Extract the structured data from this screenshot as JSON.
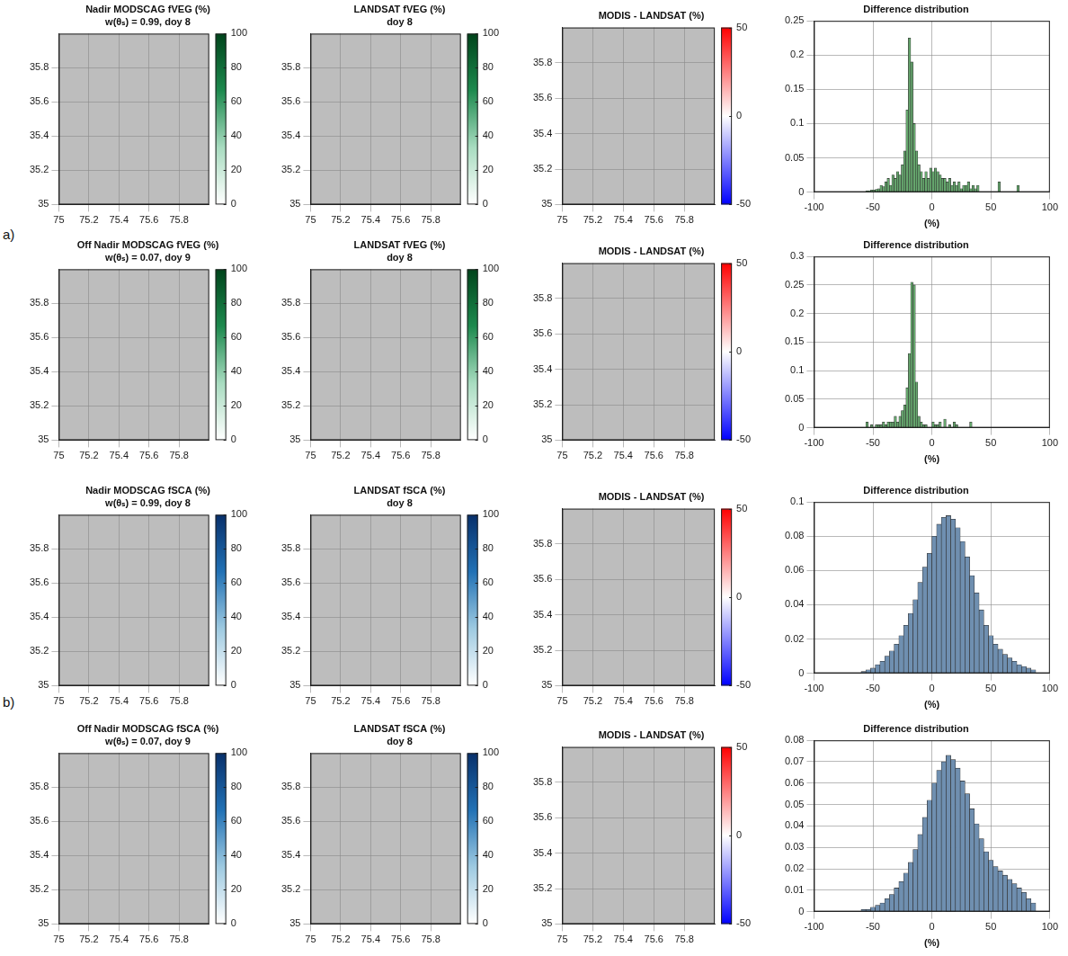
{
  "chart_data": [
    {
      "type": "map",
      "title": "Nadir MODSCAG fVEG (%)",
      "subtitle": "w(θₛ) = 0.99, doy 8",
      "xlim": [
        75,
        76
      ],
      "ylim": [
        35,
        36
      ],
      "xticks": [
        75,
        75.2,
        75.4,
        75.6,
        75.8
      ],
      "yticks": [
        35,
        35.2,
        35.4,
        35.6,
        35.8
      ],
      "grid": true,
      "colorbar": {
        "range": [
          0,
          100
        ],
        "ticks": [
          0,
          20,
          40,
          60,
          80,
          100
        ],
        "colors": [
          "#ffffff",
          "#a8dcc0",
          "#1d8a4e",
          "#00441b"
        ]
      }
    },
    {
      "type": "map",
      "title": "LANDSAT fVEG (%)",
      "subtitle": "doy 8",
      "xlim": [
        75,
        76
      ],
      "ylim": [
        35,
        36
      ],
      "xticks": [
        75,
        75.2,
        75.4,
        75.6,
        75.8
      ],
      "yticks": [
        35,
        35.2,
        35.4,
        35.6,
        35.8
      ],
      "grid": true,
      "colorbar": {
        "range": [
          0,
          100
        ],
        "ticks": [
          0,
          20,
          40,
          60,
          80,
          100
        ],
        "colors": [
          "#ffffff",
          "#a8dcc0",
          "#1d8a4e",
          "#00441b"
        ]
      }
    },
    {
      "type": "map",
      "title": "MODIS - LANDSAT (%)",
      "xlim": [
        75,
        76
      ],
      "ylim": [
        35,
        36
      ],
      "xticks": [
        75,
        75.2,
        75.4,
        75.6,
        75.8
      ],
      "yticks": [
        35,
        35.2,
        35.4,
        35.6,
        35.8
      ],
      "grid": true,
      "colorbar": {
        "range": [
          -50,
          50
        ],
        "ticks": [
          -50,
          0,
          50
        ],
        "colors": [
          "#0000ff",
          "#ffffff",
          "#ff0000"
        ]
      }
    },
    {
      "type": "histogram",
      "title": "Difference distribution",
      "xlabel": "(%)",
      "color": "#66a86e",
      "xlim": [
        -100,
        100
      ],
      "xticks": [
        -100,
        -50,
        0,
        50,
        100
      ],
      "ylim": [
        0,
        0.25
      ],
      "yticks": [
        0,
        0.05,
        0.1,
        0.15,
        0.2,
        0.25
      ],
      "grid": true,
      "bins": [
        -56,
        -54,
        -52,
        -50,
        -48,
        -46,
        -44,
        -42,
        -40,
        -38,
        -36,
        -34,
        -32,
        -30,
        -28,
        -26,
        -24,
        -22,
        -20,
        -18,
        -16,
        -14,
        -12,
        -10,
        -8,
        -6,
        -4,
        -2,
        0,
        2,
        4,
        6,
        8,
        10,
        12,
        14,
        16,
        18,
        20,
        22,
        24,
        26,
        28,
        30,
        32,
        34,
        36,
        38,
        40,
        42,
        44,
        46,
        48,
        50,
        52,
        54,
        56,
        58,
        60,
        62,
        64,
        66,
        68,
        70,
        72,
        74,
        76
      ],
      "values": [
        0.002,
        0.002,
        0.003,
        0.003,
        0.004,
        0.005,
        0.01,
        0.008,
        0.015,
        0.02,
        0.01,
        0.025,
        0.02,
        0.03,
        0.025,
        0.04,
        0.06,
        0.12,
        0.225,
        0.19,
        0.1,
        0.06,
        0.04,
        0.03,
        0.02,
        0.03,
        0.02,
        0.035,
        0.03,
        0.035,
        0.03,
        0.025,
        0.02,
        0.02,
        0.015,
        0.02,
        0.01,
        0.015,
        0.01,
        0.015,
        0.005,
        0.01,
        0.01,
        0.015,
        0.005,
        0.01,
        0.005,
        0.01,
        0,
        0,
        0,
        0,
        0,
        0,
        0,
        0,
        0.015,
        0,
        0,
        0,
        0,
        0,
        0,
        0,
        0.01,
        0
      ]
    },
    {
      "type": "map",
      "title": "Off Nadir MODSCAG fVEG (%)",
      "subtitle": "w(θₛ) = 0.07, doy 9",
      "xlim": [
        75,
        76
      ],
      "ylim": [
        35,
        36
      ],
      "xticks": [
        75,
        75.2,
        75.4,
        75.6,
        75.8
      ],
      "yticks": [
        35,
        35.2,
        35.4,
        35.6,
        35.8
      ],
      "grid": true,
      "colorbar": {
        "range": [
          0,
          100
        ],
        "ticks": [
          0,
          20,
          40,
          60,
          80,
          100
        ],
        "colors": [
          "#ffffff",
          "#a8dcc0",
          "#1d8a4e",
          "#00441b"
        ]
      }
    },
    {
      "type": "map",
      "title": "LANDSAT fVEG (%)",
      "subtitle": "doy 8",
      "xlim": [
        75,
        76
      ],
      "ylim": [
        35,
        36
      ],
      "xticks": [
        75,
        75.2,
        75.4,
        75.6,
        75.8
      ],
      "yticks": [
        35,
        35.2,
        35.4,
        35.6,
        35.8
      ],
      "grid": true,
      "colorbar": {
        "range": [
          0,
          100
        ],
        "ticks": [
          0,
          20,
          40,
          60,
          80,
          100
        ],
        "colors": [
          "#ffffff",
          "#a8dcc0",
          "#1d8a4e",
          "#00441b"
        ]
      }
    },
    {
      "type": "map",
      "title": "MODIS - LANDSAT (%)",
      "xlim": [
        75,
        76
      ],
      "ylim": [
        35,
        36
      ],
      "xticks": [
        75,
        75.2,
        75.4,
        75.6,
        75.8
      ],
      "yticks": [
        35,
        35.2,
        35.4,
        35.6,
        35.8
      ],
      "grid": true,
      "colorbar": {
        "range": [
          -50,
          50
        ],
        "ticks": [
          -50,
          0,
          50
        ],
        "colors": [
          "#0000ff",
          "#ffffff",
          "#ff0000"
        ]
      }
    },
    {
      "type": "histogram",
      "title": "Difference distribution",
      "xlabel": "(%)",
      "color": "#66a86e",
      "xlim": [
        -100,
        100
      ],
      "xticks": [
        -100,
        -50,
        0,
        50,
        100
      ],
      "ylim": [
        0,
        0.3
      ],
      "yticks": [
        0,
        0.05,
        0.1,
        0.15,
        0.2,
        0.25,
        0.3
      ],
      "grid": true,
      "bins": [
        -56,
        -54,
        -52,
        -50,
        -48,
        -46,
        -44,
        -42,
        -40,
        -38,
        -36,
        -34,
        -32,
        -30,
        -28,
        -26,
        -24,
        -22,
        -20,
        -18,
        -16,
        -14,
        -12,
        -10,
        -8,
        -6,
        -4,
        -2,
        0,
        2,
        4,
        6,
        8,
        10,
        12,
        14,
        16,
        18,
        20,
        22,
        24,
        26,
        28,
        30,
        32,
        34,
        36,
        38,
        40,
        42,
        44,
        46,
        48,
        50,
        52,
        54,
        56,
        58,
        60,
        62,
        64,
        66,
        68,
        70,
        72,
        74,
        76
      ],
      "values": [
        0.01,
        0,
        0.005,
        0,
        0.005,
        0.005,
        0.005,
        0.01,
        0.005,
        0.01,
        0.01,
        0.01,
        0.02,
        0.01,
        0.02,
        0.03,
        0.04,
        0.07,
        0.13,
        0.255,
        0.25,
        0.08,
        0.02,
        0.01,
        0.005,
        0.005,
        0,
        0,
        0.01,
        0.005,
        0.005,
        0.01,
        0,
        0.015,
        0,
        0.005,
        0,
        0.01,
        0.005,
        0,
        0,
        0,
        0,
        0,
        0.01,
        0,
        0,
        0,
        0,
        0,
        0,
        0,
        0,
        0,
        0,
        0,
        0,
        0,
        0,
        0,
        0,
        0,
        0,
        0,
        0,
        0
      ]
    },
    {
      "type": "map",
      "title": "Nadir MODSCAG fSCA (%)",
      "subtitle": "w(θₛ) = 0.99, doy 8",
      "xlim": [
        75,
        76
      ],
      "ylim": [
        35,
        36
      ],
      "xticks": [
        75,
        75.2,
        75.4,
        75.6,
        75.8
      ],
      "yticks": [
        35,
        35.2,
        35.4,
        35.6,
        35.8
      ],
      "grid": true,
      "colorbar": {
        "range": [
          0,
          100
        ],
        "ticks": [
          0,
          20,
          40,
          60,
          80,
          100
        ],
        "colors": [
          "#ffffff",
          "#9ecae1",
          "#2171b5",
          "#08306b"
        ]
      }
    },
    {
      "type": "map",
      "title": "LANDSAT fSCA (%)",
      "subtitle": "doy 8",
      "xlim": [
        75,
        76
      ],
      "ylim": [
        35,
        36
      ],
      "xticks": [
        75,
        75.2,
        75.4,
        75.6,
        75.8
      ],
      "yticks": [
        35,
        35.2,
        35.4,
        35.6,
        35.8
      ],
      "grid": true,
      "colorbar": {
        "range": [
          0,
          100
        ],
        "ticks": [
          0,
          20,
          40,
          60,
          80,
          100
        ],
        "colors": [
          "#ffffff",
          "#9ecae1",
          "#2171b5",
          "#08306b"
        ]
      }
    },
    {
      "type": "map",
      "title": "MODIS - LANDSAT (%)",
      "xlim": [
        75,
        76
      ],
      "ylim": [
        35,
        36
      ],
      "xticks": [
        75,
        75.2,
        75.4,
        75.6,
        75.8
      ],
      "yticks": [
        35,
        35.2,
        35.4,
        35.6,
        35.8
      ],
      "grid": true,
      "colorbar": {
        "range": [
          -50,
          50
        ],
        "ticks": [
          -50,
          0,
          50
        ],
        "colors": [
          "#0000ff",
          "#ffffff",
          "#ff0000"
        ]
      }
    },
    {
      "type": "histogram",
      "title": "Difference distribution",
      "xlabel": "(%)",
      "color": "#6f8fb0",
      "xlim": [
        -100,
        100
      ],
      "xticks": [
        -100,
        -50,
        0,
        50,
        100
      ],
      "ylim": [
        0,
        0.1
      ],
      "yticks": [
        0,
        0.02,
        0.04,
        0.06,
        0.08,
        0.1
      ],
      "grid": true,
      "bins": [
        -60,
        -56,
        -52,
        -48,
        -44,
        -40,
        -36,
        -32,
        -28,
        -24,
        -20,
        -16,
        -12,
        -8,
        -4,
        0,
        4,
        8,
        12,
        16,
        20,
        24,
        28,
        32,
        36,
        40,
        44,
        48,
        52,
        56,
        60,
        64,
        68,
        72,
        76,
        80,
        84,
        88
      ],
      "values": [
        0.001,
        0.002,
        0.003,
        0.005,
        0.007,
        0.01,
        0.013,
        0.017,
        0.022,
        0.028,
        0.035,
        0.043,
        0.053,
        0.062,
        0.07,
        0.08,
        0.087,
        0.091,
        0.092,
        0.09,
        0.085,
        0.077,
        0.068,
        0.057,
        0.047,
        0.037,
        0.028,
        0.022,
        0.017,
        0.014,
        0.011,
        0.009,
        0.007,
        0.005,
        0.004,
        0.003,
        0.002
      ]
    },
    {
      "type": "map",
      "title": "Off Nadir MODSCAG fSCA (%)",
      "subtitle": "w(θₛ) = 0.07, doy 9",
      "xlim": [
        75,
        76
      ],
      "ylim": [
        35,
        36
      ],
      "xticks": [
        75,
        75.2,
        75.4,
        75.6,
        75.8
      ],
      "yticks": [
        35,
        35.2,
        35.4,
        35.6,
        35.8
      ],
      "grid": true,
      "colorbar": {
        "range": [
          0,
          100
        ],
        "ticks": [
          0,
          20,
          40,
          60,
          80,
          100
        ],
        "colors": [
          "#ffffff",
          "#9ecae1",
          "#2171b5",
          "#08306b"
        ]
      }
    },
    {
      "type": "map",
      "title": "LANDSAT fSCA (%)",
      "subtitle": "doy 8",
      "xlim": [
        75,
        76
      ],
      "ylim": [
        35,
        36
      ],
      "xticks": [
        75,
        75.2,
        75.4,
        75.6,
        75.8
      ],
      "yticks": [
        35,
        35.2,
        35.4,
        35.6,
        35.8
      ],
      "grid": true,
      "colorbar": {
        "range": [
          0,
          100
        ],
        "ticks": [
          0,
          20,
          40,
          60,
          80,
          100
        ],
        "colors": [
          "#ffffff",
          "#9ecae1",
          "#2171b5",
          "#08306b"
        ]
      }
    },
    {
      "type": "map",
      "title": "MODIS - LANDSAT (%)",
      "xlim": [
        75,
        76
      ],
      "ylim": [
        35,
        36
      ],
      "xticks": [
        75,
        75.2,
        75.4,
        75.6,
        75.8
      ],
      "yticks": [
        35,
        35.2,
        35.4,
        35.6,
        35.8
      ],
      "grid": true,
      "colorbar": {
        "range": [
          -50,
          50
        ],
        "ticks": [
          -50,
          0,
          50
        ],
        "colors": [
          "#0000ff",
          "#ffffff",
          "#ff0000"
        ]
      }
    },
    {
      "type": "histogram",
      "title": "Difference distribution",
      "xlabel": "(%)",
      "color": "#6f8fb0",
      "xlim": [
        -100,
        100
      ],
      "xticks": [
        -100,
        -50,
        0,
        50,
        100
      ],
      "ylim": [
        0,
        0.08
      ],
      "yticks": [
        0,
        0.01,
        0.02,
        0.03,
        0.04,
        0.05,
        0.06,
        0.07,
        0.08
      ],
      "grid": true,
      "bins": [
        -60,
        -56,
        -52,
        -48,
        -44,
        -40,
        -36,
        -32,
        -28,
        -24,
        -20,
        -16,
        -12,
        -8,
        -4,
        0,
        4,
        8,
        12,
        16,
        20,
        24,
        28,
        32,
        36,
        40,
        44,
        48,
        52,
        56,
        60,
        64,
        68,
        72,
        76,
        80,
        84,
        88
      ],
      "values": [
        0.001,
        0.001,
        0.002,
        0.003,
        0.004,
        0.006,
        0.008,
        0.011,
        0.014,
        0.018,
        0.023,
        0.029,
        0.036,
        0.044,
        0.052,
        0.06,
        0.066,
        0.07,
        0.073,
        0.071,
        0.067,
        0.061,
        0.055,
        0.048,
        0.041,
        0.034,
        0.028,
        0.024,
        0.021,
        0.019,
        0.017,
        0.015,
        0.013,
        0.011,
        0.009,
        0.006,
        0.004
      ]
    }
  ],
  "panel_labels": [
    "a)",
    "b)"
  ]
}
